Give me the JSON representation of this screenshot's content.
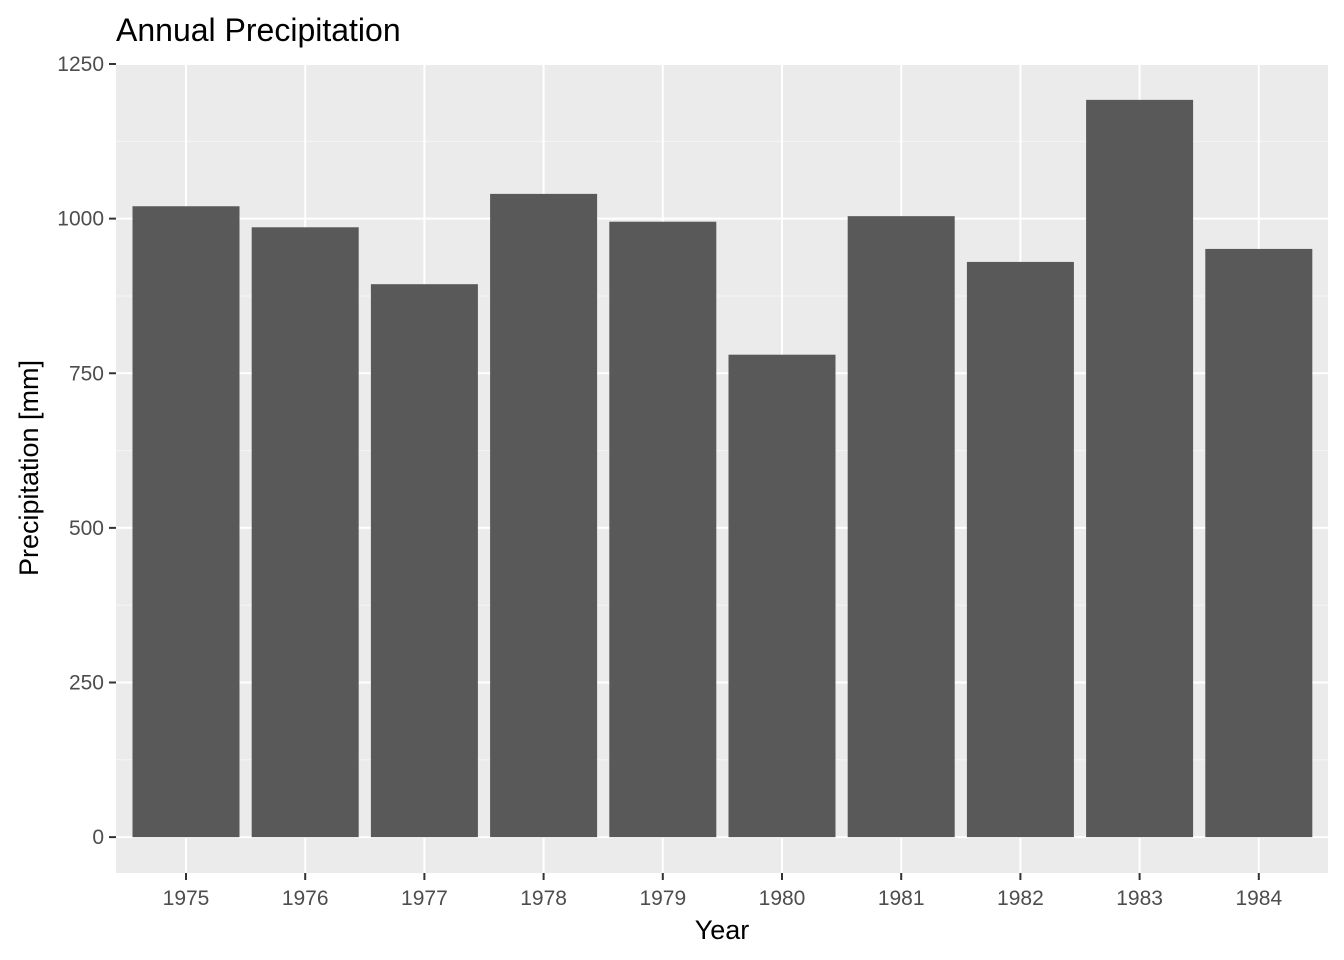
{
  "chart_data": {
    "type": "bar",
    "title": "Annual Precipitation",
    "xlabel": "Year",
    "ylabel": "Precipitation [mm]",
    "categories": [
      "1975",
      "1976",
      "1977",
      "1978",
      "1979",
      "1980",
      "1981",
      "1982",
      "1983",
      "1984"
    ],
    "values": [
      1020,
      986,
      894,
      1040,
      995,
      780,
      1004,
      930,
      1192,
      951
    ],
    "ylim": [
      -58,
      1250
    ],
    "yticks": [
      "0",
      "250",
      "500",
      "750",
      "1000",
      "1250"
    ],
    "ytick_values": [
      0,
      250,
      500,
      750,
      1000,
      1250
    ],
    "grid": true,
    "legend": "none",
    "colors": {
      "bar": "#595959",
      "panel_background": "#ebebeb",
      "grid_major": "#ffffff",
      "grid_minor": "#f5f5f5",
      "tick_text": "#4d4d4d",
      "tick_mark": "#333333"
    }
  }
}
